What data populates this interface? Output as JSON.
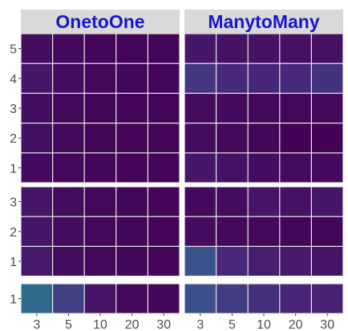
{
  "chart_data": {
    "type": "heatmap",
    "facets": [
      "OnetoOne",
      "ManytoMany"
    ],
    "x_categories": [
      "3",
      "5",
      "10",
      "20",
      "30"
    ],
    "row_groups": [
      {
        "y_categories": [
          "1",
          "2",
          "3",
          "4",
          "5"
        ]
      },
      {
        "y_categories": [
          "1",
          "2",
          "3"
        ]
      },
      {
        "y_categories": [
          "1"
        ]
      }
    ],
    "colorscale": [
      "#440154",
      "#482878",
      "#3e4a89",
      "#31688e",
      "#26828e"
    ],
    "color_range": [
      0,
      1
    ],
    "values": [
      {
        "facet": "OnetoOne",
        "groups": [
          [
            [
              0.06,
              0.05,
              0.03,
              0.02,
              0.02
            ],
            [
              0.09,
              0.06,
              0.03,
              0.02,
              0.02
            ],
            [
              0.08,
              0.05,
              0.03,
              0.02,
              0.02
            ],
            [
              0.14,
              0.07,
              0.04,
              0.03,
              0.02
            ],
            [
              0.08,
              0.05,
              0.03,
              0.02,
              0.02
            ]
          ],
          [
            [
              0.16,
              0.08,
              0.04,
              0.03,
              0.02
            ],
            [
              0.14,
              0.08,
              0.04,
              0.03,
              0.02
            ],
            [
              0.13,
              0.07,
              0.04,
              0.03,
              0.02
            ]
          ],
          [
            [
              0.78,
              0.42,
              0.12,
              0.04,
              0.03
            ]
          ]
        ]
      },
      {
        "facet": "ManytoMany",
        "groups": [
          [
            [
              0.14,
              0.1,
              0.08,
              0.07,
              0.06
            ],
            [
              0.08,
              0.05,
              0.03,
              0.01,
              0.01
            ],
            [
              0.07,
              0.06,
              0.05,
              0.04,
              0.04
            ],
            [
              0.36,
              0.26,
              0.24,
              0.26,
              0.32
            ],
            [
              0.14,
              0.11,
              0.11,
              0.1,
              0.1
            ]
          ],
          [
            [
              0.58,
              0.26,
              0.18,
              0.16,
              0.13
            ],
            [
              0.08,
              0.05,
              0.04,
              0.03,
              0.03
            ],
            [
              0.06,
              0.07,
              0.13,
              0.1,
              0.14
            ]
          ],
          [
            [
              0.55,
              0.4,
              0.3,
              0.24,
              0.22
            ]
          ]
        ]
      }
    ]
  }
}
